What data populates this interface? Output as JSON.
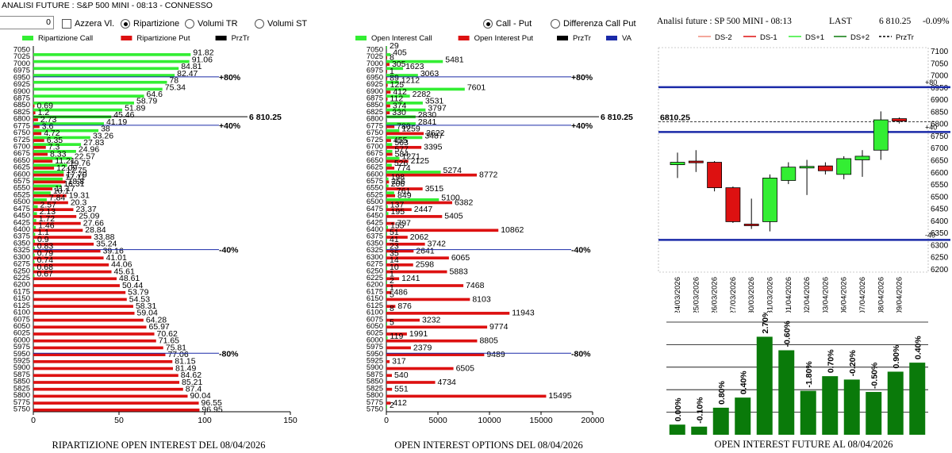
{
  "app": {
    "title": "ANALISI FUTURE : S&P 500 MINI - 08:13 - CONNESSO"
  },
  "toolbar": {
    "spin_value": "0",
    "azzera": "Azzera Vl.",
    "ripartizione": "Ripartizione",
    "volumi_tr": "Volumi TR",
    "volumi_st": "Volumi ST",
    "call_put": "Call - Put",
    "diff_call_put": "Differenza Call Put",
    "selected_mode": "Ripartizione",
    "selected_view": "Call - Put"
  },
  "colors": {
    "green": "#33ee33",
    "red": "#dd1111",
    "black": "#000000",
    "blue": "#1a2aa8",
    "darkgreen": "#0a7a0a"
  },
  "chart_data": [
    {
      "id": "ripartizione",
      "type": "bar",
      "orientation": "horizontal",
      "title": "RIPARTIZIONE OPEN INTEREST DEL 08/04/2026",
      "legend": [
        "Ripartizione Call",
        "Ripartizione Put",
        "PrzTr"
      ],
      "strikes": [
        7050,
        7025,
        7000,
        6975,
        6950,
        6925,
        6900,
        6875,
        6850,
        6825,
        6800,
        6775,
        6750,
        6725,
        6700,
        6675,
        6650,
        6625,
        6600,
        6575,
        6550,
        6525,
        6500,
        6475,
        6450,
        6425,
        6400,
        6375,
        6350,
        6325,
        6300,
        6275,
        6250,
        6225,
        6200,
        6175,
        6150,
        6125,
        6100,
        6075,
        6050,
        6025,
        6000,
        5975,
        5950,
        5925,
        5900,
        5875,
        5850,
        5825,
        5800,
        5775,
        5750
      ],
      "call": [
        null,
        91.82,
        91.06,
        84.81,
        82.47,
        78,
        75.34,
        64.6,
        58.79,
        51.89,
        45.46,
        41.19,
        38,
        33.26,
        27.83,
        24.96,
        22.57,
        19.76,
        17.75,
        17.11,
        16.31,
        10.1,
        7.84,
        2.57,
        2.13,
        1.72,
        1.46,
        1.1,
        0.9,
        0.83,
        0.79,
        0.74,
        0.68,
        0.67,
        null,
        null,
        null,
        null,
        null,
        null,
        null,
        null,
        null,
        null,
        null,
        null,
        null,
        null,
        null,
        null,
        null,
        null,
        null
      ],
      "put": [
        null,
        null,
        null,
        null,
        null,
        null,
        null,
        null,
        0.69,
        1.2,
        2.73,
        3.6,
        4.72,
        6.35,
        7.3,
        8.33,
        11.21,
        12.09,
        17.79,
        18.8,
        11.17,
        19.31,
        20.3,
        23.37,
        25.09,
        27.66,
        28.84,
        33.88,
        35.24,
        39.16,
        41.01,
        44.06,
        45.61,
        48.61,
        50.44,
        53.79,
        54.53,
        58.31,
        59.04,
        64.28,
        65.97,
        70.62,
        71.65,
        75.81,
        77.06,
        81.15,
        81.49,
        84.62,
        85.21,
        87.4,
        90.04,
        96.55,
        96.95
      ],
      "markers": [
        {
          "label": "+80%",
          "strike": 6950
        },
        {
          "label": "+40%",
          "strike": 6775
        },
        {
          "label": "-40%",
          "strike": 6325
        },
        {
          "label": "-80%",
          "strike": 5950
        }
      ],
      "price_label": "6 810.25",
      "price_strike": 6800,
      "xticks": [
        0,
        50,
        100,
        150
      ],
      "xlim": [
        0,
        150
      ]
    },
    {
      "id": "open_interest",
      "type": "bar",
      "orientation": "horizontal",
      "title": "OPEN INTEREST OPTIONS DEL 08/04/2026",
      "legend": [
        "Open Interest Call",
        "Open Interest Put",
        "PrzTr",
        "VA"
      ],
      "strikes": [
        7050,
        7025,
        7000,
        6975,
        6950,
        6925,
        6900,
        6875,
        6850,
        6825,
        6800,
        6775,
        6750,
        6725,
        6700,
        6675,
        6650,
        6625,
        6600,
        6575,
        6550,
        6525,
        6500,
        6475,
        6450,
        6425,
        6400,
        6375,
        6350,
        6325,
        6300,
        6275,
        6250,
        6225,
        6200,
        6175,
        6150,
        6125,
        6100,
        6075,
        6050,
        6025,
        6000,
        5975,
        5950,
        5925,
        5900,
        5875,
        5850,
        5825,
        5800,
        5775,
        5750
      ],
      "call": [
        29,
        405,
        5481,
        1623,
        3063,
        1212,
        7601,
        2282,
        3531,
        3797,
        2830,
        2841,
        1259,
        3487,
        563,
        577,
        1271,
        526,
        5274,
        198,
        206,
        761,
        5100,
        137,
        195,
        null,
        155,
        51,
        41,
        23,
        35,
        14,
        10,
        1,
        2,
        1,
        5,
        null,
        8,
        null,
        5,
        null,
        119,
        null,
        null,
        null,
        null,
        null,
        null,
        null,
        null,
        null,
        2
      ],
      "put": [
        null,
        8,
        305,
        1,
        89,
        125,
        412,
        112,
        374,
        330,
        null,
        780,
        3622,
        455,
        3395,
        584,
        2125,
        774,
        8772,
        256,
        3515,
        849,
        6382,
        2447,
        5405,
        797,
        10862,
        2062,
        3742,
        2641,
        6065,
        2598,
        5883,
        1241,
        7468,
        486,
        8103,
        876,
        11943,
        3232,
        9774,
        1991,
        8805,
        2379,
        9489,
        317,
        6505,
        540,
        4734,
        551,
        15495,
        412,
        null
      ],
      "markers": [
        {
          "label": "+80%",
          "strike": 6950
        },
        {
          "label": "+40%",
          "strike": 6775
        },
        {
          "label": "-40%",
          "strike": 6325
        },
        {
          "label": "-80%",
          "strike": 5950
        }
      ],
      "price_label": "6 810.25",
      "price_strike": 6800,
      "xticks": [
        0,
        5000,
        10000,
        15000,
        20000
      ],
      "xlim": [
        0,
        20000
      ]
    },
    {
      "id": "candles",
      "type": "candlestick",
      "title": "Analisi future : SP 500 MINI - 08:13",
      "last_label": "LAST",
      "last_value": "6 810.25",
      "change": "-0.09%",
      "price_tag": "6810.25",
      "legend": [
        "DS-2",
        "DS-1",
        "DS+1",
        "DS+2",
        "PrzTr"
      ],
      "dates": [
        "24/03/2026",
        "25/03/2026",
        "26/03/2026",
        "27/03/2026",
        "30/03/2026",
        "31/03/2026",
        "01/04/2026",
        "02/04/2026",
        "03/04/2026",
        "06/04/2026",
        "07/04/2026",
        "08/04/2026",
        "09/04/2026"
      ],
      "candles": [
        {
          "o": 6630,
          "c": 6640,
          "h": 6680,
          "l": 6575
        },
        {
          "o": 6645,
          "c": 6638,
          "h": 6690,
          "l": 6600
        },
        {
          "o": 6640,
          "c": 6535,
          "h": 6645,
          "l": 6520
        },
        {
          "o": 6535,
          "c": 6395,
          "h": 6540,
          "l": 6390
        },
        {
          "o": 6385,
          "c": 6380,
          "h": 6490,
          "l": 6365
        },
        {
          "o": 6395,
          "c": 6575,
          "h": 6590,
          "l": 6355
        },
        {
          "o": 6565,
          "c": 6620,
          "h": 6640,
          "l": 6550
        },
        {
          "o": 6617,
          "c": 6623,
          "h": 6650,
          "l": 6505
        },
        {
          "o": 6625,
          "c": 6605,
          "h": 6640,
          "l": 6590
        },
        {
          "o": 6590,
          "c": 6655,
          "h": 6665,
          "l": 6570
        },
        {
          "o": 6650,
          "c": 6665,
          "h": 6690,
          "l": 6580
        },
        {
          "o": 6690,
          "c": 6815,
          "h": 6850,
          "l": 6650
        },
        {
          "o": 6820,
          "c": 6810,
          "h": 6825,
          "l": 6800
        }
      ],
      "ylim": [
        6200,
        7100
      ],
      "yticks": [
        7100,
        7050,
        7000,
        6950,
        6900,
        6850,
        6800,
        6750,
        6700,
        6650,
        6600,
        6550,
        6500,
        6450,
        6400,
        6350,
        6300,
        6250,
        6200
      ],
      "hlines": [
        {
          "label": "+80",
          "value": 6950
        },
        {
          "label": "+40",
          "value": 6765
        },
        {
          "label": "-40",
          "value": 6320
        }
      ]
    },
    {
      "id": "future_oi",
      "type": "bar",
      "title": "OPEN INTEREST FUTURE AL 08/04/2026",
      "values": [
        0.45,
        0.36,
        1.2,
        1.65,
        4.35,
        3.75,
        1.95,
        2.6,
        2.45,
        1.9,
        2.8,
        3.2
      ],
      "labels": [
        "0.00%",
        "-0.10%",
        "0.80%",
        "0.40%",
        "2.70%",
        "-0.60%",
        "-1.80%",
        "0.70%",
        "-0.20%",
        "-0.50%",
        "0.90%",
        "0.40%"
      ],
      "ylim": [
        0,
        5
      ],
      "gridlines": [
        1,
        2,
        3,
        4,
        5
      ]
    }
  ]
}
